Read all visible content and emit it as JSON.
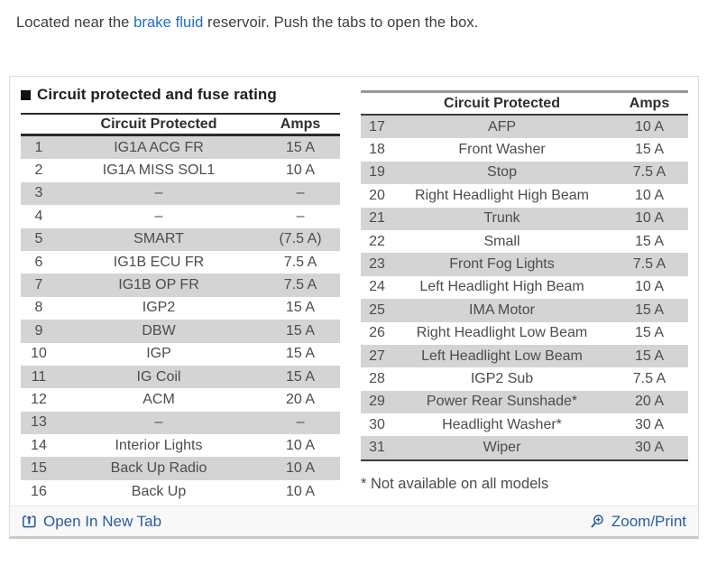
{
  "intro": {
    "text_before": "Located near the ",
    "link_text": "brake fluid",
    "text_after": " reservoir. Push the tabs to open the box."
  },
  "panel": {
    "section_title": "Circuit protected and fuse rating",
    "left_table": {
      "col_circuit": "Circuit Protected",
      "col_amps": "Amps",
      "rows": [
        {
          "num": "1",
          "circuit": "IG1A ACG FR",
          "amps": "15 A",
          "shaded": true
        },
        {
          "num": "2",
          "circuit": "IG1A MISS SOL1",
          "amps": "10 A",
          "shaded": false
        },
        {
          "num": "3",
          "circuit": "–",
          "amps": "–",
          "shaded": true
        },
        {
          "num": "4",
          "circuit": "–",
          "amps": "–",
          "shaded": false
        },
        {
          "num": "5",
          "circuit": "SMART",
          "amps": "(7.5 A)",
          "shaded": true
        },
        {
          "num": "6",
          "circuit": "IG1B ECU FR",
          "amps": "7.5 A",
          "shaded": false
        },
        {
          "num": "7",
          "circuit": "IG1B OP FR",
          "amps": "7.5 A",
          "shaded": true
        },
        {
          "num": "8",
          "circuit": "IGP2",
          "amps": "15 A",
          "shaded": false
        },
        {
          "num": "9",
          "circuit": "DBW",
          "amps": "15 A",
          "shaded": true
        },
        {
          "num": "10",
          "circuit": "IGP",
          "amps": "15 A",
          "shaded": false
        },
        {
          "num": "11",
          "circuit": "IG Coil",
          "amps": "15 A",
          "shaded": true
        },
        {
          "num": "12",
          "circuit": "ACM",
          "amps": "20 A",
          "shaded": false
        },
        {
          "num": "13",
          "circuit": "–",
          "amps": "–",
          "shaded": true
        },
        {
          "num": "14",
          "circuit": "Interior Lights",
          "amps": "10 A",
          "shaded": false
        },
        {
          "num": "15",
          "circuit": "Back Up Radio",
          "amps": "10 A",
          "shaded": true
        },
        {
          "num": "16",
          "circuit": "Back Up",
          "amps": "10 A",
          "shaded": false
        }
      ]
    },
    "right_table": {
      "col_circuit": "Circuit Protected",
      "col_amps": "Amps",
      "rows": [
        {
          "num": "17",
          "circuit": "AFP",
          "amps": "10 A",
          "shaded": true
        },
        {
          "num": "18",
          "circuit": "Front Washer",
          "amps": "15 A",
          "shaded": false
        },
        {
          "num": "19",
          "circuit": "Stop",
          "amps": "7.5 A",
          "shaded": true
        },
        {
          "num": "20",
          "circuit": "Right Headlight High Beam",
          "amps": "10 A",
          "shaded": false
        },
        {
          "num": "21",
          "circuit": "Trunk",
          "amps": "10 A",
          "shaded": true
        },
        {
          "num": "22",
          "circuit": "Small",
          "amps": "15 A",
          "shaded": false
        },
        {
          "num": "23",
          "circuit": "Front Fog Lights",
          "amps": "7.5 A",
          "shaded": true
        },
        {
          "num": "24",
          "circuit": "Left Headlight High Beam",
          "amps": "10 A",
          "shaded": false
        },
        {
          "num": "25",
          "circuit": "IMA Motor",
          "amps": "15 A",
          "shaded": true
        },
        {
          "num": "26",
          "circuit": "Right Headlight Low Beam",
          "amps": "15 A",
          "shaded": false
        },
        {
          "num": "27",
          "circuit": "Left Headlight Low Beam",
          "amps": "15 A",
          "shaded": true
        },
        {
          "num": "28",
          "circuit": "IGP2 Sub",
          "amps": "7.5 A",
          "shaded": false
        },
        {
          "num": "29",
          "circuit": "Power Rear Sunshade*",
          "amps": "20 A",
          "shaded": true
        },
        {
          "num": "30",
          "circuit": "Headlight Washer*",
          "amps": "30 A",
          "shaded": false
        },
        {
          "num": "31",
          "circuit": "Wiper",
          "amps": "30 A",
          "shaded": true
        }
      ]
    },
    "footnote": "* Not available on all models"
  },
  "footer": {
    "open_in_new_tab": "Open In New Tab",
    "zoom_print": "Zoom/Print"
  },
  "colors": {
    "intro_link_blue": "#1b6fbf",
    "footer_link_blue": "#285e9d",
    "shaded_row_gray": "#d4d4d4",
    "footer_bg": "#f8f8f8"
  }
}
